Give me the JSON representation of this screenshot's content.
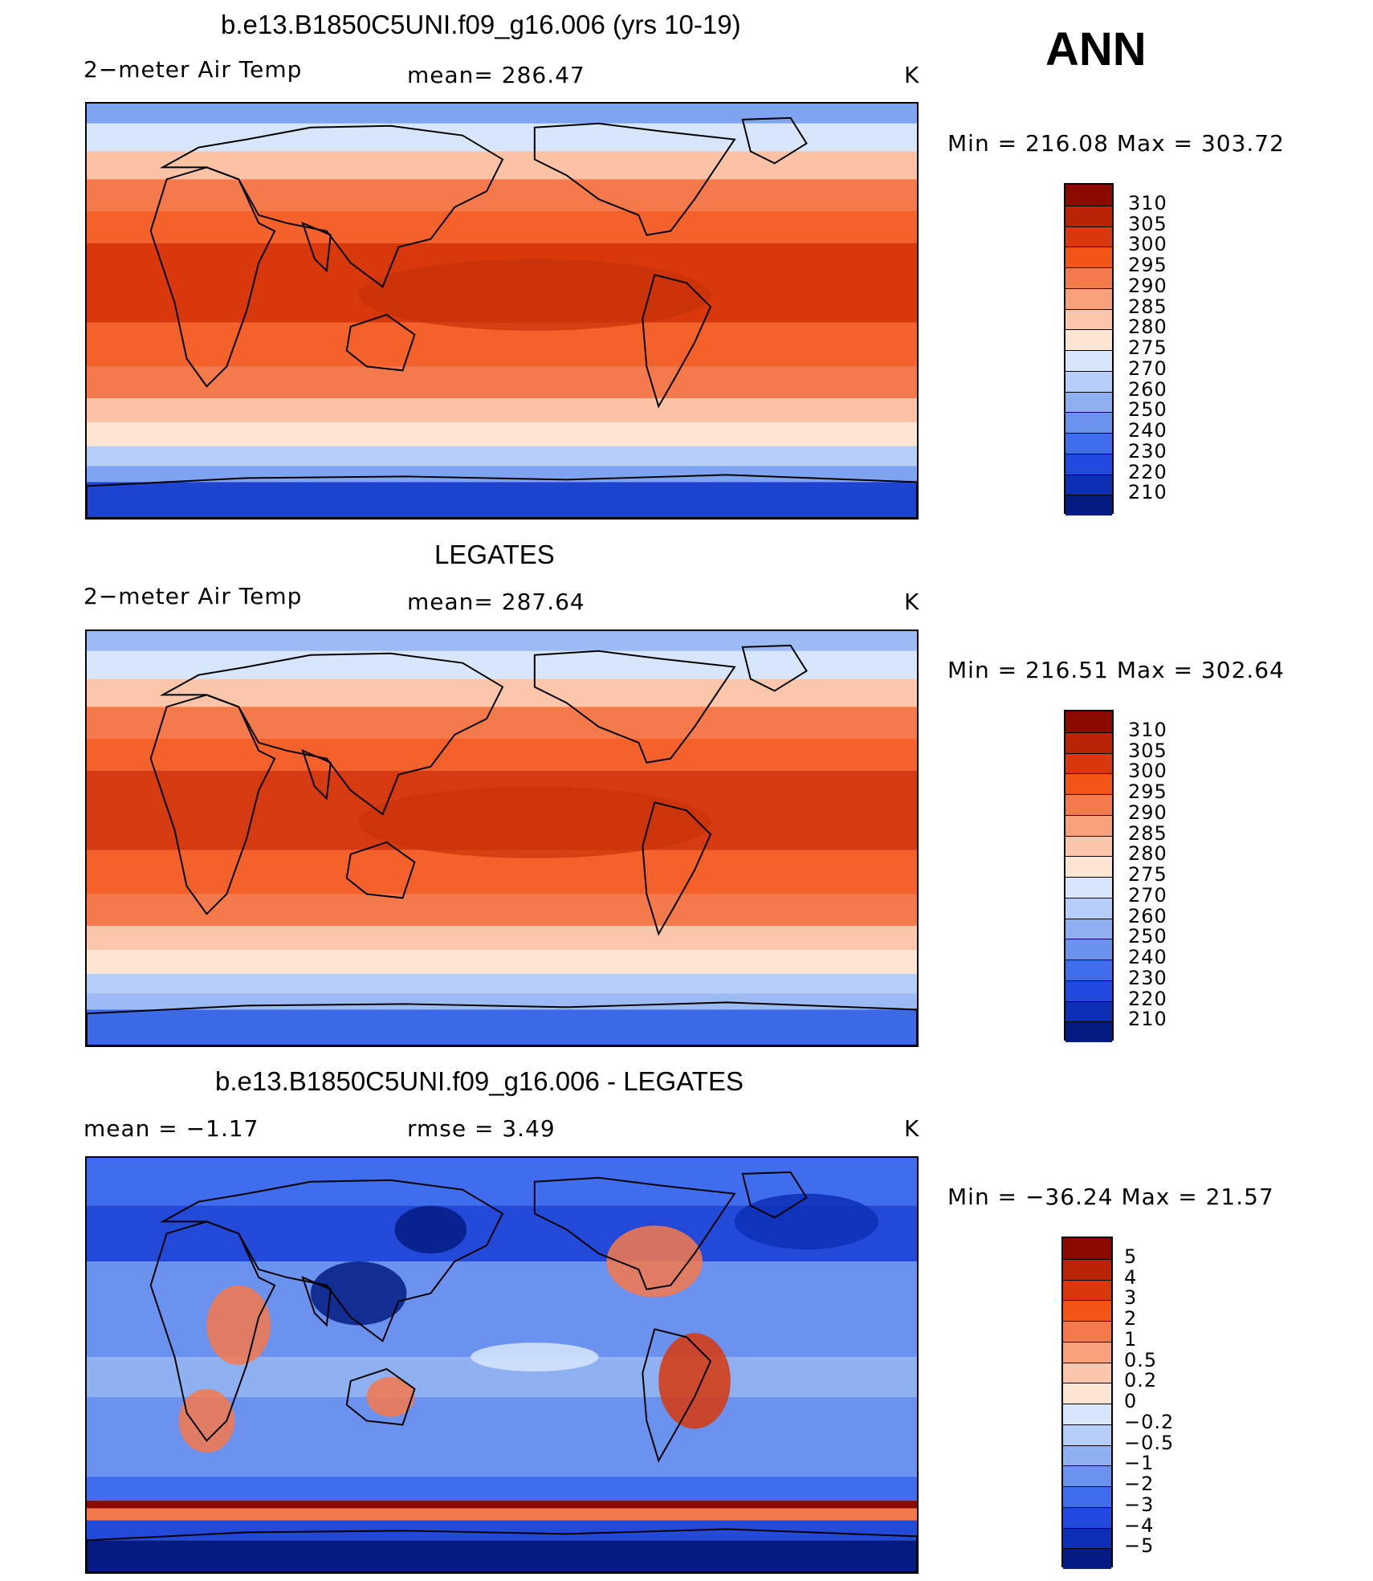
{
  "season": "ANN",
  "panels": [
    {
      "title": "b.e13.B1850C5UNI.f09_g16.006 (yrs 10-19)",
      "left_label": "2−meter Air Temp",
      "mid_label": "mean= 286.47",
      "unit": "K",
      "minmax": "Min  =  216.08  Max  =  303.72",
      "colorbar": {
        "labels": [
          "310",
          "305",
          "300",
          "295",
          "290",
          "285",
          "280",
          "275",
          "270",
          "260",
          "250",
          "240",
          "230",
          "220",
          "210"
        ],
        "colors": [
          "#8b0a00",
          "#b82405",
          "#d8380c",
          "#f35519",
          "#f4794b",
          "#f7a27d",
          "#fbc6a9",
          "#fde5d4",
          "#d7e6fb",
          "#b5cdf7",
          "#8fb1f2",
          "#6b92ee",
          "#3f6ded",
          "#2149e0",
          "#0c2fb5",
          "#041c82"
        ]
      },
      "map_colors": {
        "polar": "#1c44d0",
        "high": "#7ea3f0",
        "mid": "#fbc2a5",
        "warm": "#f4612a",
        "hot": "#d8380c",
        "land_anom": "#f3a07d"
      }
    },
    {
      "title": "LEGATES",
      "left_label": "2−meter Air Temp",
      "mid_label": "mean= 287.64",
      "unit": "K",
      "minmax": "Min  =  216.51  Max  =  302.64",
      "colorbar": {
        "labels": [
          "310",
          "305",
          "300",
          "295",
          "290",
          "285",
          "280",
          "275",
          "270",
          "260",
          "250",
          "240",
          "230",
          "220",
          "210"
        ],
        "colors": [
          "#8b0a00",
          "#b82405",
          "#d8380c",
          "#f35519",
          "#f4794b",
          "#f7a27d",
          "#fbc6a9",
          "#fde5d4",
          "#d7e6fb",
          "#b5cdf7",
          "#8fb1f2",
          "#6b92ee",
          "#3f6ded",
          "#2149e0",
          "#0c2fb5",
          "#041c82"
        ]
      },
      "map_colors": {
        "polar": "#3b69e8",
        "high": "#9cbaf3",
        "mid": "#fbc6a9",
        "warm": "#f4612a",
        "hot": "#d63a10",
        "land_anom": "#f5a07d"
      }
    },
    {
      "title": "b.e13.B1850C5UNI.f09_g16.006 - LEGATES",
      "left_label": "mean =    −1.17",
      "mid_label": "rmse =     3.49",
      "unit": "K",
      "minmax": "Min  =  −36.24  Max  =    21.57",
      "colorbar": {
        "labels": [
          "5",
          "4",
          "3",
          "2",
          "1",
          "0.5",
          "0.2",
          "0",
          "−0.2",
          "−0.5",
          "−1",
          "−2",
          "−3",
          "−4",
          "−5"
        ],
        "colors": [
          "#8b0a00",
          "#b82405",
          "#d8380c",
          "#f35519",
          "#f4794b",
          "#f7a27d",
          "#fbc6a9",
          "#fde5d4",
          "#d7e6fb",
          "#b5cdf7",
          "#8fb1f2",
          "#6b92ee",
          "#3f6ded",
          "#2149e0",
          "#0c2fb5",
          "#041c82"
        ]
      },
      "map_colors": {
        "polar": "#8b0a00",
        "high": "#2349d8",
        "mid": "#6b92ee",
        "warm": "#3f6ded",
        "hot": "#8fb1f2",
        "land_anom": "#f4794b"
      }
    }
  ]
}
